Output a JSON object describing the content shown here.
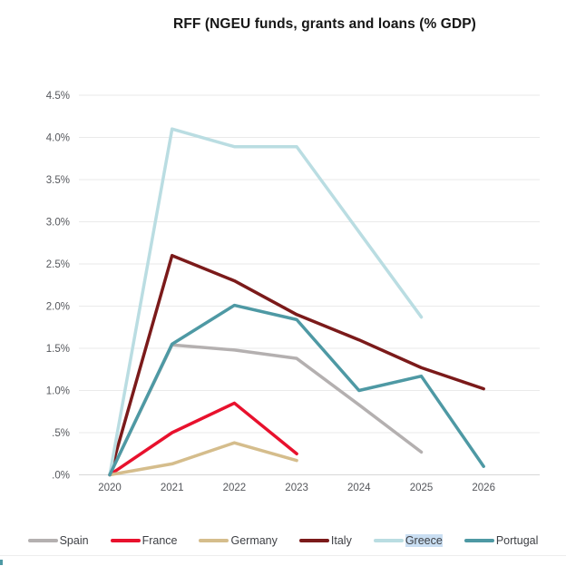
{
  "chart_data": {
    "type": "line",
    "title": "RFF (NGEU funds, grants and loans (% GDP)",
    "x": [
      "2020",
      "2021",
      "2022",
      "2023",
      "2024",
      "2025",
      "2026"
    ],
    "xlabel": "",
    "ylabel": "",
    "unit": "% GDP",
    "ylim": [
      0,
      4.5
    ],
    "grid": "horizontal",
    "legend_position": "bottom",
    "yticks": [
      {
        "label": "4.5%",
        "value": 4.5
      },
      {
        "label": "4.0%",
        "value": 4.0
      },
      {
        "label": "3.5%",
        "value": 3.5
      },
      {
        "label": "3.0%",
        "value": 3.0
      },
      {
        "label": "2.5%",
        "value": 2.5
      },
      {
        "label": "2.0%",
        "value": 2.0
      },
      {
        "label": "1.5%",
        "value": 1.5
      },
      {
        "label": "1.0%",
        "value": 1.0
      },
      {
        "label": ".5%",
        "value": 0.5
      },
      {
        "label": ".0%",
        "value": 0.0
      }
    ],
    "series": [
      {
        "name": "Spain",
        "color": "#b4b0b0",
        "values": [
          0,
          1.54,
          1.48,
          1.38,
          0.83,
          0.27,
          null
        ]
      },
      {
        "name": "France",
        "color": "#e8112d",
        "values": [
          0,
          0.5,
          0.85,
          0.25,
          null,
          null,
          null
        ]
      },
      {
        "name": "Germany",
        "color": "#d5bd8c",
        "values": [
          0,
          0.13,
          0.38,
          0.17,
          null,
          null,
          null
        ]
      },
      {
        "name": "Italy",
        "color": "#7b1a1a",
        "values": [
          0,
          2.6,
          2.3,
          1.9,
          1.6,
          1.27,
          1.02
        ]
      },
      {
        "name": "Greece",
        "color": "#badde2",
        "values": [
          0,
          4.1,
          3.89,
          3.89,
          2.88,
          1.87,
          null
        ]
      },
      {
        "name": "Portugal",
        "color": "#4e99a4",
        "values": [
          0,
          1.55,
          2.01,
          1.84,
          1.0,
          1.17,
          0.1
        ]
      }
    ]
  },
  "legend": {
    "highlight_color": "#c9def2",
    "items": [
      {
        "label": "Spain",
        "color": "#b4b0b0",
        "highlighted": false
      },
      {
        "label": "France",
        "color": "#e8112d",
        "highlighted": false
      },
      {
        "label": "Germany",
        "color": "#d5bd8c",
        "highlighted": false
      },
      {
        "label": "Italy",
        "color": "#7b1a1a",
        "highlighted": false
      },
      {
        "label": "Greece",
        "color": "#badde2",
        "highlighted": true
      },
      {
        "label": "Portugal",
        "color": "#4e99a4",
        "highlighted": false
      }
    ]
  }
}
